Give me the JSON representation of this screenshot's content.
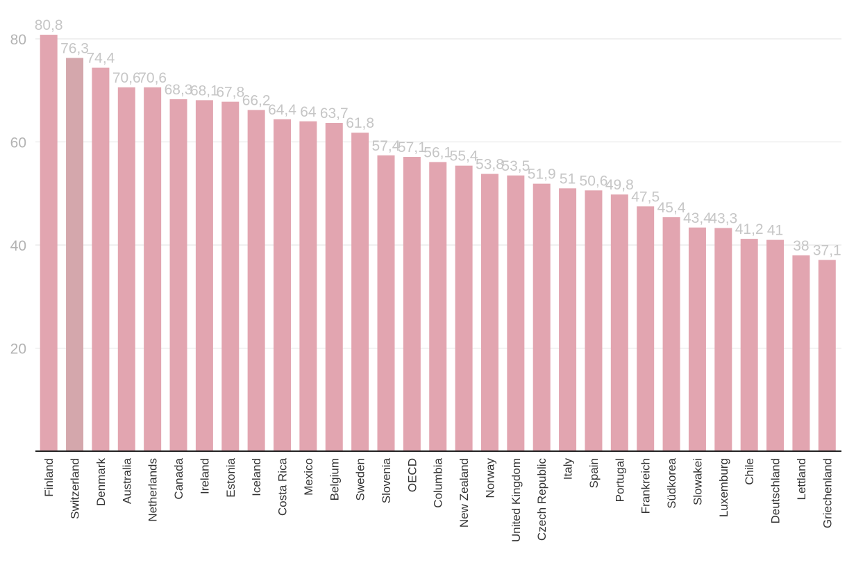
{
  "chart_data": {
    "type": "bar",
    "title": "",
    "xlabel": "",
    "ylabel": "",
    "ylim": [
      0,
      87
    ],
    "yticks": [
      20,
      40,
      60,
      80
    ],
    "categories": [
      "Finland",
      "Switzerland",
      "Denmark",
      "Australia",
      "Netherlands",
      "Canada",
      "Ireland",
      "Estonia",
      "Iceland",
      "Costa Rica",
      "Mexico",
      "Belgium",
      "Sweden",
      "Slovenia",
      "OECD",
      "Columbia",
      "New Zealand",
      "Norway",
      "United Kingdom",
      "Czech Republic",
      "Italy",
      "Spain",
      "Portugal",
      "Frankreich",
      "Südkorea",
      "Slowakei",
      "Luxemburg",
      "Chile",
      "Deutschland",
      "Lettland",
      "Griechenland"
    ],
    "values": [
      80.8,
      76.3,
      74.4,
      70.6,
      70.6,
      68.3,
      68.1,
      67.8,
      66.2,
      64.4,
      64,
      63.7,
      61.8,
      57.4,
      57.1,
      56.1,
      55.4,
      53.8,
      53.5,
      51.9,
      51,
      50.6,
      49.8,
      47.5,
      45.4,
      43.4,
      43.3,
      41.2,
      41,
      38,
      37.1
    ],
    "data_labels": [
      "80,8",
      "76,3",
      "74,4",
      "70,6",
      "70,6",
      "68,3",
      "68,1",
      "67,8",
      "66,2",
      "64,4",
      "64",
      "63,7",
      "61,8",
      "57,4",
      "57,1",
      "56,1",
      "55,4",
      "53,8",
      "53,5",
      "51,9",
      "51",
      "50,6",
      "49,8",
      "47,5",
      "45,4",
      "43,4",
      "43,3",
      "41,2",
      "41",
      "38",
      "37,1"
    ],
    "highlight_category": "Switzerland",
    "colors": {
      "bar": "#e2a5b0",
      "highlight": "#d4a7ac",
      "grid": "#e1e1e1",
      "axis": "#222222",
      "label": "#c6c6c6",
      "tick": "#b3b3b3"
    },
    "grid": true,
    "legend": "none"
  }
}
